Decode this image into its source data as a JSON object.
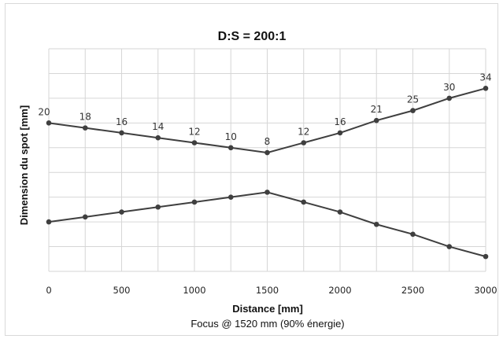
{
  "chart_data": {
    "type": "line",
    "title": "D:S = 200:1",
    "xlabel": "Distance [mm]",
    "ylabel": "Dimension du spot [mm]",
    "caption": "Focus @ 1520 mm (90% énergie)",
    "x": [
      0,
      250,
      500,
      750,
      1000,
      1250,
      1500,
      1750,
      2000,
      2250,
      2500,
      2750,
      3000
    ],
    "xticks": [
      0,
      500,
      1000,
      1500,
      2000,
      2500,
      3000
    ],
    "xlim": [
      0,
      3000
    ],
    "ylim": [
      -20,
      25
    ],
    "grid": true,
    "legend": "none",
    "series": [
      {
        "values": [
          10,
          9,
          8,
          7,
          6,
          5,
          4,
          6,
          8,
          10.5,
          12.5,
          15,
          17
        ],
        "data_labels": [
          "20",
          "18",
          "16",
          "14",
          "12",
          "10",
          "8",
          "12",
          "16",
          "21",
          "25",
          "30",
          "34"
        ]
      },
      {
        "values": [
          -10,
          -9,
          -8,
          -7,
          -6,
          -5,
          -4,
          -6,
          -8,
          -10.5,
          -12.5,
          -15,
          -17
        ]
      }
    ],
    "line_color": "#3f3f3f"
  }
}
